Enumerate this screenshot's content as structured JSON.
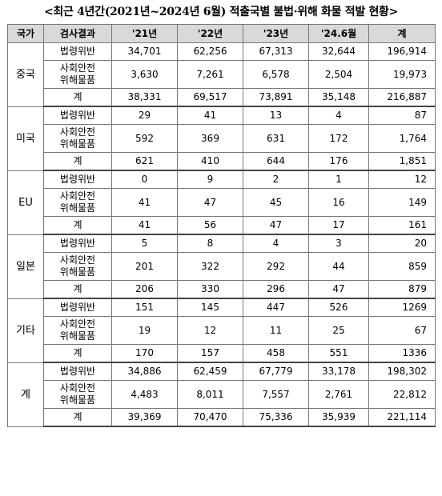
{
  "title": "<최근 4년간(2021년~2024년 6월) 적출국별 불법·위해 화물 적발 현황>",
  "columns": [
    "국가",
    "검사결과",
    "'21년",
    "'22년",
    "'23년",
    "'24.6월",
    "계"
  ],
  "categories": [
    "법령위반",
    "사회안전\n위해물품",
    "계"
  ],
  "groups": [
    {
      "country": "중국",
      "rows": [
        [
          "34,701",
          "62,256",
          "67,313",
          "32,644",
          "196,914"
        ],
        [
          "3,630",
          "7,261",
          "6,578",
          "2,504",
          "19,973"
        ],
        [
          "38,331",
          "69,517",
          "73,891",
          "35,148",
          "216,887"
        ]
      ]
    },
    {
      "country": "미국",
      "rows": [
        [
          "29",
          "41",
          "13",
          "4",
          "87"
        ],
        [
          "592",
          "369",
          "631",
          "172",
          "1,764"
        ],
        [
          "621",
          "410",
          "644",
          "176",
          "1,851"
        ]
      ]
    },
    {
      "country": "EU",
      "rows": [
        [
          "0",
          "9",
          "2",
          "1",
          "12"
        ],
        [
          "41",
          "47",
          "45",
          "16",
          "149"
        ],
        [
          "41",
          "56",
          "47",
          "17",
          "161"
        ]
      ]
    },
    {
      "country": "일본",
      "rows": [
        [
          "5",
          "8",
          "4",
          "3",
          "20"
        ],
        [
          "201",
          "322",
          "292",
          "44",
          "859"
        ],
        [
          "206",
          "330",
          "296",
          "47",
          "879"
        ]
      ]
    },
    {
      "country": "기타",
      "rows": [
        [
          "151",
          "145",
          "447",
          "526",
          "1269"
        ],
        [
          "19",
          "12",
          "11",
          "25",
          "67"
        ],
        [
          "170",
          "157",
          "458",
          "551",
          "1336"
        ]
      ]
    },
    {
      "country": "계",
      "rows": [
        [
          "34,886",
          "62,459",
          "67,779",
          "33,178",
          "198,302"
        ],
        [
          "4,483",
          "8,011",
          "7,557",
          "2,761",
          "22,812"
        ],
        [
          "39,369",
          "70,470",
          "75,336",
          "35,939",
          "221,114"
        ]
      ]
    }
  ]
}
